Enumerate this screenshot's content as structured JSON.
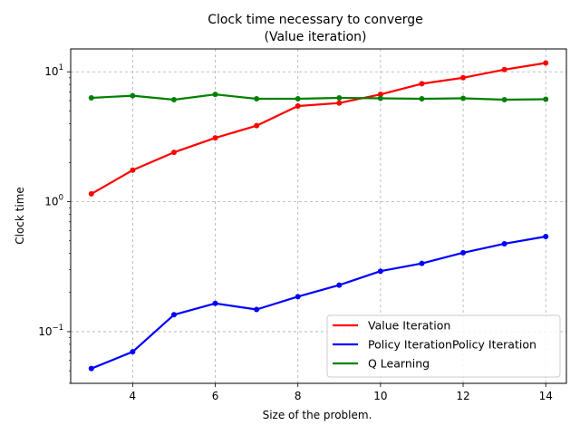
{
  "chart_data": {
    "type": "line",
    "title": "Clock time necessary to converge",
    "subtitle": "(Value iteration)",
    "xlabel": "Size of the problem.",
    "ylabel": "Clock time",
    "yscale": "log",
    "xlim": [
      2.5,
      14.5
    ],
    "ylim": [
      0.04,
      15
    ],
    "grid": true,
    "legend_position": "lower-right",
    "x_ticks": [
      4,
      6,
      8,
      10,
      12,
      14
    ],
    "x_tick_labels": [
      "4",
      "6",
      "8",
      "10",
      "12",
      "14"
    ],
    "y_ticks": [
      0.1,
      1,
      10
    ],
    "y_tick_labels": [
      "10",
      "10",
      "10"
    ],
    "y_tick_exponents": [
      "−1",
      "0",
      "1"
    ],
    "x": [
      3,
      4,
      5,
      6,
      7,
      8,
      9,
      10,
      11,
      12,
      13,
      14
    ],
    "series": [
      {
        "name": "Value Iteration",
        "color": "#ff0000",
        "values": [
          1.15,
          1.75,
          2.4,
          3.1,
          3.85,
          5.45,
          5.75,
          6.7,
          8.1,
          9.0,
          10.4,
          11.7
        ]
      },
      {
        "name": "Policy IterationPolicy Iteration",
        "color": "#0000ff",
        "values": [
          0.052,
          0.07,
          0.135,
          0.165,
          0.148,
          0.186,
          0.228,
          0.292,
          0.335,
          0.405,
          0.475,
          0.54
        ]
      },
      {
        "name": "Q Learning",
        "color": "#008000",
        "values": [
          6.3,
          6.55,
          6.1,
          6.7,
          6.2,
          6.2,
          6.3,
          6.25,
          6.2,
          6.25,
          6.1,
          6.15
        ]
      }
    ]
  }
}
